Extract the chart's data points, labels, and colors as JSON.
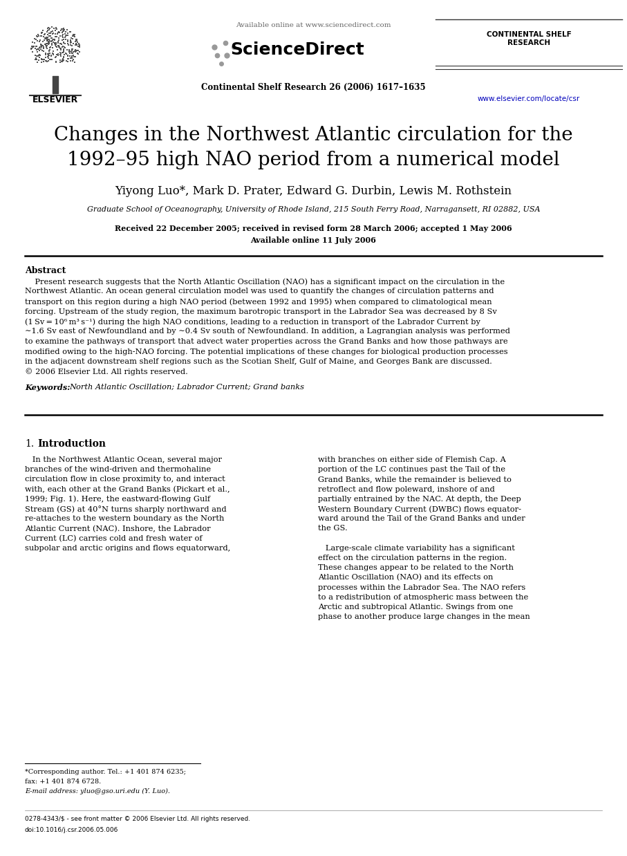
{
  "page_width": 9.07,
  "page_height": 12.38,
  "dpi": 100,
  "background_color": "#ffffff",
  "title_line1": "Changes in the Northwest Atlantic circulation for the",
  "title_line2": "1992–95 high NAO period from a numerical model",
  "authors": "Yiyong Luo*, Mark D. Prater, Edward G. Durbin, Lewis M. Rothstein",
  "affiliation": "Graduate School of Oceanography, University of Rhode Island, 215 South Ferry Road, Narragansett, RI 02882, USA",
  "received": "Received 22 December 2005; received in revised form 28 March 2006; accepted 1 May 2006",
  "available_online": "Available online 11 July 2006",
  "header_available": "Available online at www.sciencedirect.com",
  "journal_name": "Continental Shelf Research 26 (2006) 1617–1635",
  "journal_abbrev": "CONTINENTAL SHELF\nRESEARCH",
  "website": "www.elsevier.com/locate/csr",
  "elsevier_label": "ELSEVIER",
  "sciencedirect_label": "ScienceDirect",
  "abstract_title": "Abstract",
  "keywords_label": "Keywords:",
  "keywords_text": "North Atlantic Oscillation; Labrador Current; Grand banks",
  "footer_line1": "*Corresponding author. Tel.: +1 401 874 6235;",
  "footer_line2": "fax: +1 401 874 6728.",
  "footer_email": "E-mail address: yluo@gso.uri.edu (Y. Luo).",
  "footer_copyright": "0278-4343/$ - see front matter © 2006 Elsevier Ltd. All rights reserved.",
  "footer_doi": "doi:10.1016/j.csr.2006.05.006"
}
